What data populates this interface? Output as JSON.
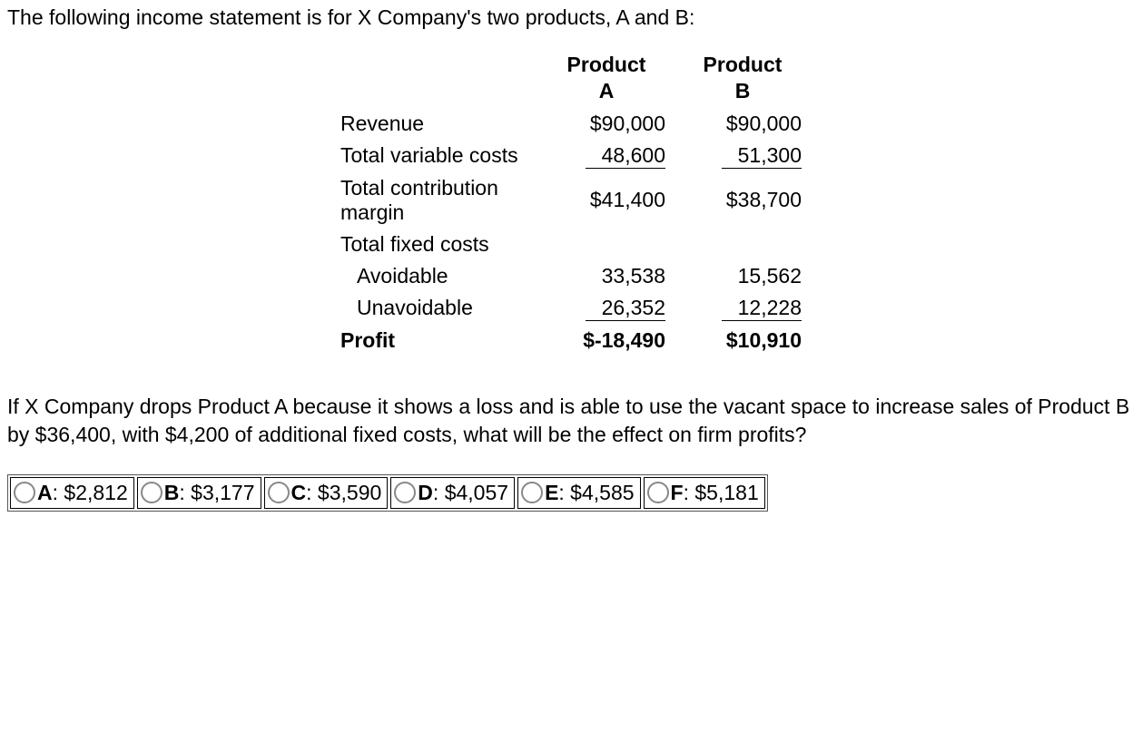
{
  "intro": "The following income statement is for X Company's two products, A and B:",
  "table": {
    "header_a": "Product A",
    "header_b": "Product B",
    "rows": {
      "revenue": {
        "label": "Revenue",
        "a": "$90,000",
        "b": "$90,000"
      },
      "var_costs": {
        "label": "Total variable costs",
        "a": "48,600",
        "b": "51,300"
      },
      "contrib": {
        "label": "Total contribution margin",
        "a": "$41,400",
        "b": "$38,700"
      },
      "fixed_label": {
        "label": "Total fixed costs"
      },
      "avoidable": {
        "label": "Avoidable",
        "a": "33,538",
        "b": "15,562"
      },
      "unavoidable": {
        "label": "Unavoidable",
        "a": "26,352",
        "b": "12,228"
      },
      "profit": {
        "label": "Profit",
        "a": "$-18,490",
        "b": "$10,910"
      }
    }
  },
  "question": "If X Company drops Product A because it shows a loss and is able to use the vacant space to increase sales of Product B by $36,400, with $4,200 of additional fixed costs, what will be the effect on firm profits?",
  "options": {
    "a": {
      "letter": "A",
      "value": ": $2,812"
    },
    "b": {
      "letter": "B",
      "value": ": $3,177"
    },
    "c": {
      "letter": "C",
      "value": ": $3,590"
    },
    "d": {
      "letter": "D",
      "value": ": $4,057"
    },
    "e": {
      "letter": "E",
      "value": ": $4,585"
    },
    "f": {
      "letter": "F",
      "value": ": $5,181"
    }
  }
}
